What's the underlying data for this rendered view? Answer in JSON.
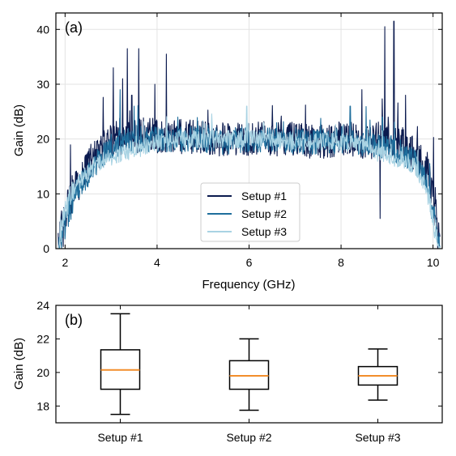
{
  "chart_data": [
    {
      "type": "line",
      "panel_label": "(a)",
      "xlabel": "Frequency (GHz)",
      "ylabel": "Gain (dB)",
      "xlim": [
        1.8,
        10.2
      ],
      "ylim": [
        0,
        43
      ],
      "xticks": [
        2,
        4,
        6,
        8,
        10
      ],
      "yticks": [
        0,
        10,
        20,
        30,
        40
      ],
      "grid": true,
      "legend": "bottom-center",
      "colors": [
        "#0b1a4e",
        "#1f6e9c",
        "#a9d3e3"
      ],
      "series": [
        {
          "name": "Setup #1",
          "color": "#0b1a4e",
          "x": [
            1.85,
            1.95,
            2.05,
            2.15,
            2.3,
            2.5,
            2.7,
            2.9,
            3.1,
            3.3,
            3.5,
            3.7,
            4.0,
            4.5,
            5.0,
            5.5,
            6.0,
            6.5,
            7.0,
            7.5,
            8.0,
            8.3,
            8.6,
            8.8,
            9.0,
            9.2,
            9.4,
            9.6,
            9.8,
            9.95,
            10.05,
            10.15
          ],
          "y": [
            0,
            4,
            7,
            10,
            12,
            15,
            17.5,
            19,
            20,
            20.5,
            20.5,
            21,
            20.5,
            20.5,
            20,
            20,
            20,
            20,
            20,
            19.5,
            20,
            20,
            19,
            20,
            20,
            20,
            18.5,
            17.5,
            15,
            11,
            6,
            0
          ],
          "spikes": [
            [
              3.05,
              33
            ],
            [
              3.25,
              31
            ],
            [
              3.35,
              36.5
            ],
            [
              3.45,
              28
            ],
            [
              3.6,
              36.5
            ],
            [
              3.95,
              30
            ],
            [
              4.2,
              35.5
            ],
            [
              8.45,
              29
            ],
            [
              8.85,
              5.5
            ],
            [
              8.95,
              40.5
            ],
            [
              9.15,
              41.5
            ],
            [
              9.4,
              28
            ]
          ]
        },
        {
          "name": "Setup #2",
          "color": "#1f6e9c",
          "x": [
            1.85,
            1.95,
            2.05,
            2.15,
            2.3,
            2.5,
            2.7,
            2.9,
            3.1,
            3.3,
            3.5,
            3.7,
            4.0,
            4.5,
            5.0,
            5.5,
            6.0,
            6.5,
            7.0,
            7.5,
            8.0,
            8.3,
            8.6,
            8.8,
            9.0,
            9.2,
            9.4,
            9.6,
            9.8,
            9.95,
            10.05,
            10.15
          ],
          "y": [
            0,
            3,
            6,
            9,
            11,
            13.5,
            16,
            18,
            19,
            19.5,
            20,
            20,
            20,
            20,
            20,
            19.5,
            20,
            20,
            19.5,
            19.5,
            19.5,
            19.5,
            19,
            18.5,
            18.5,
            18,
            17,
            16,
            13,
            9,
            4,
            0
          ],
          "spikes": [
            [
              3.2,
              29
            ],
            [
              3.5,
              26
            ],
            [
              8.2,
              26
            ],
            [
              8.9,
              24
            ]
          ]
        },
        {
          "name": "Setup #3",
          "color": "#a9d3e3",
          "x": [
            1.85,
            1.95,
            2.05,
            2.15,
            2.3,
            2.5,
            2.7,
            2.9,
            3.1,
            3.3,
            3.5,
            3.7,
            4.0,
            4.5,
            5.0,
            5.5,
            6.0,
            6.5,
            7.0,
            7.5,
            8.0,
            8.3,
            8.6,
            8.8,
            9.0,
            9.2,
            9.4,
            9.6,
            9.8,
            9.95,
            10.05,
            10.15
          ],
          "y": [
            0,
            5,
            8,
            10.5,
            12,
            14,
            15.5,
            16.5,
            17,
            17.5,
            18,
            18.5,
            19.5,
            20,
            20,
            20,
            20,
            20,
            19.5,
            19.5,
            19.5,
            19,
            18.5,
            17.5,
            17,
            16.5,
            16,
            15,
            12,
            8,
            3,
            0
          ],
          "spikes": [
            [
              5.95,
              26
            ],
            [
              3.55,
              22.5
            ]
          ]
        }
      ]
    },
    {
      "type": "box",
      "panel_label": "(b)",
      "ylabel": "Gain (dB)",
      "ylim": [
        17,
        24
      ],
      "yticks": [
        18,
        20,
        22,
        24
      ],
      "categories": [
        "Setup #1",
        "Setup #2",
        "Setup #3"
      ],
      "boxes": [
        {
          "whislo": 17.5,
          "q1": 19.0,
          "med": 20.15,
          "q3": 21.35,
          "whishi": 23.5
        },
        {
          "whislo": 17.75,
          "q1": 19.0,
          "med": 19.8,
          "q3": 20.7,
          "whishi": 22.0
        },
        {
          "whislo": 18.35,
          "q1": 19.25,
          "med": 19.8,
          "q3": 20.35,
          "whishi": 21.4
        }
      ],
      "median_color": "#f28e2b"
    }
  ]
}
